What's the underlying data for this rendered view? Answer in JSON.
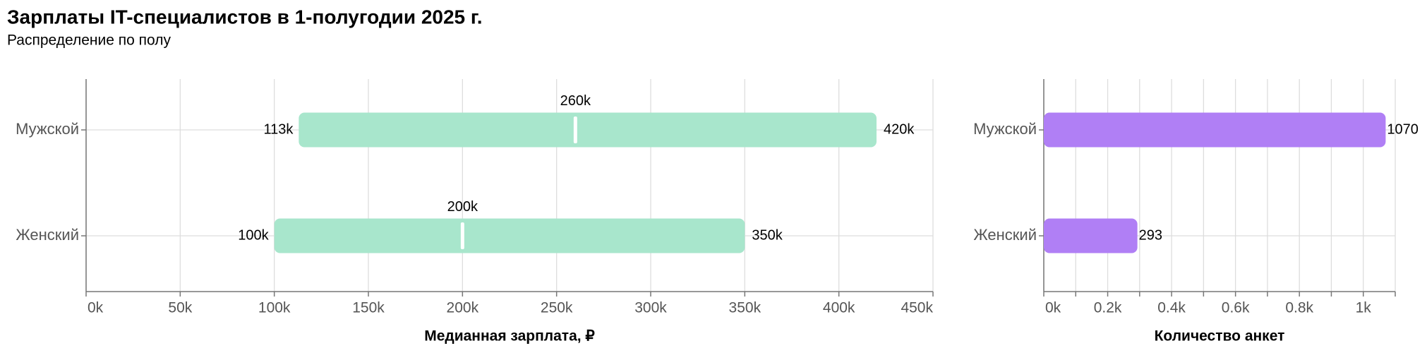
{
  "title": "Зарплаты IT-специалистов в 1-полугодии 2025 г.",
  "subtitle": "Распределение по полу",
  "chart_data": [
    {
      "type": "range",
      "x_label": "Медианная зарплата, ₽",
      "categories": [
        "Мужской",
        "Женский"
      ],
      "low": [
        113000,
        100000
      ],
      "low_labels": [
        "113k",
        "100k"
      ],
      "median": [
        260000,
        200000
      ],
      "median_labels": [
        "260k",
        "200k"
      ],
      "high": [
        420000,
        350000
      ],
      "high_labels": [
        "420k",
        "350k"
      ],
      "color": "#a8e6cc",
      "median_color": "#ffffff",
      "xlim": [
        0,
        450000
      ],
      "xticks": [
        {
          "value": 0,
          "label": "0k"
        },
        {
          "value": 50000,
          "label": "50k"
        },
        {
          "value": 100000,
          "label": "100k"
        },
        {
          "value": 150000,
          "label": "150k"
        },
        {
          "value": 200000,
          "label": "200k"
        },
        {
          "value": 250000,
          "label": "250k"
        },
        {
          "value": 300000,
          "label": "300k"
        },
        {
          "value": 350000,
          "label": "350k"
        },
        {
          "value": 400000,
          "label": "400k"
        },
        {
          "value": 450000,
          "label": "450k"
        }
      ],
      "grid": true
    },
    {
      "type": "bar",
      "x_label": "Количество анкет",
      "categories": [
        "Мужской",
        "Женский"
      ],
      "values": [
        1070,
        293
      ],
      "color": "#b07ff5",
      "xlim": [
        0,
        1100
      ],
      "xticks": [
        {
          "value": 0,
          "label": "0k"
        },
        {
          "value": 200,
          "label": "0.2k"
        },
        {
          "value": 400,
          "label": "0.4k"
        },
        {
          "value": 600,
          "label": "0.6k"
        },
        {
          "value": 800,
          "label": "0.8k"
        },
        {
          "value": 1000,
          "label": "1k"
        }
      ],
      "minor_xticks": [
        100,
        300,
        500,
        700,
        900,
        1100
      ],
      "grid": true
    }
  ]
}
